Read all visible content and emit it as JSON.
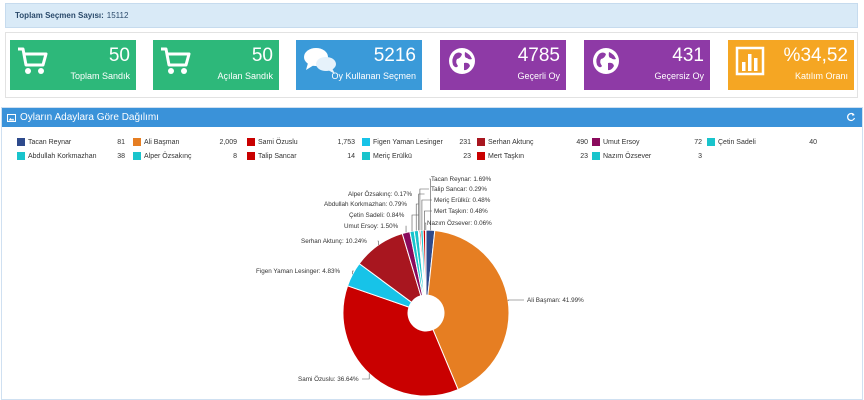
{
  "summary": {
    "label": "Toplam Seçmen Sayısı:",
    "value": "15112"
  },
  "stats": [
    {
      "value": "50",
      "label": "Toplam Sandık",
      "color": "#2db87a",
      "icon": "cart-icon"
    },
    {
      "value": "50",
      "label": "Açılan Sandık",
      "color": "#2db87a",
      "icon": "cart-icon"
    },
    {
      "value": "5216",
      "label": "Oy Kullanan Seçmen",
      "color": "#3a9ad9",
      "icon": "chat-bubbles-icon"
    },
    {
      "value": "4785",
      "label": "Geçerli Oy",
      "color": "#8e3aa6",
      "icon": "globe-icon"
    },
    {
      "value": "431",
      "label": "Geçersiz Oy",
      "color": "#8e3aa6",
      "icon": "globe-icon"
    },
    {
      "value": "%34,52",
      "label": "Katılım Oranı",
      "color": "#f5a623",
      "icon": "bar-chart-icon"
    }
  ],
  "panel": {
    "title": "Oyların Adaylara Göre Dağılımı"
  },
  "chart_data": {
    "type": "pie",
    "title": "Oyların Adaylara Göre Dağılımı",
    "series": [
      {
        "name": "Tacan Reynar",
        "value": 81,
        "value_text": "81",
        "percent_label": "1.69%",
        "color": "#2e4a8c"
      },
      {
        "name": "Ali Başman",
        "value": 2009,
        "value_text": "2,009",
        "percent_label": "41.99%",
        "color": "#e67e22"
      },
      {
        "name": "Sami Özuslu",
        "value": 1753,
        "value_text": "1,753",
        "percent_label": "36.64%",
        "color": "#c90000"
      },
      {
        "name": "Figen Yaman Lesinger",
        "value": 231,
        "value_text": "231",
        "percent_label": "4.83%",
        "color": "#17c3e8"
      },
      {
        "name": "Serhan Aktunç",
        "value": 490,
        "value_text": "490",
        "percent_label": "10.24%",
        "color": "#a8161f"
      },
      {
        "name": "Umut Ersoy",
        "value": 72,
        "value_text": "72",
        "percent_label": "1.50%",
        "color": "#8a0a5c"
      },
      {
        "name": "Çetin Sadeli",
        "value": 40,
        "value_text": "40",
        "percent_label": "0.84%",
        "color": "#19c4cc"
      },
      {
        "name": "Abdullah Korkmazhan",
        "value": 38,
        "value_text": "38",
        "percent_label": "0.79%",
        "color": "#19c4cc"
      },
      {
        "name": "Alper Özsakınç",
        "value": 8,
        "value_text": "8",
        "percent_label": "0.17%",
        "color": "#19c4cc"
      },
      {
        "name": "Talip Sancar",
        "value": 14,
        "value_text": "14",
        "percent_label": "0.29%",
        "color": "#c90000"
      },
      {
        "name": "Meriç Erülkü",
        "value": 23,
        "value_text": "23",
        "percent_label": "0.48%",
        "color": "#19c4cc"
      },
      {
        "name": "Mert Taşkın",
        "value": 23,
        "value_text": "23",
        "percent_label": "0.48%",
        "color": "#c90000"
      },
      {
        "name": "Nazım Özsever",
        "value": 3,
        "value_text": "3",
        "percent_label": "0.06%",
        "color": "#19c4cc"
      }
    ]
  }
}
